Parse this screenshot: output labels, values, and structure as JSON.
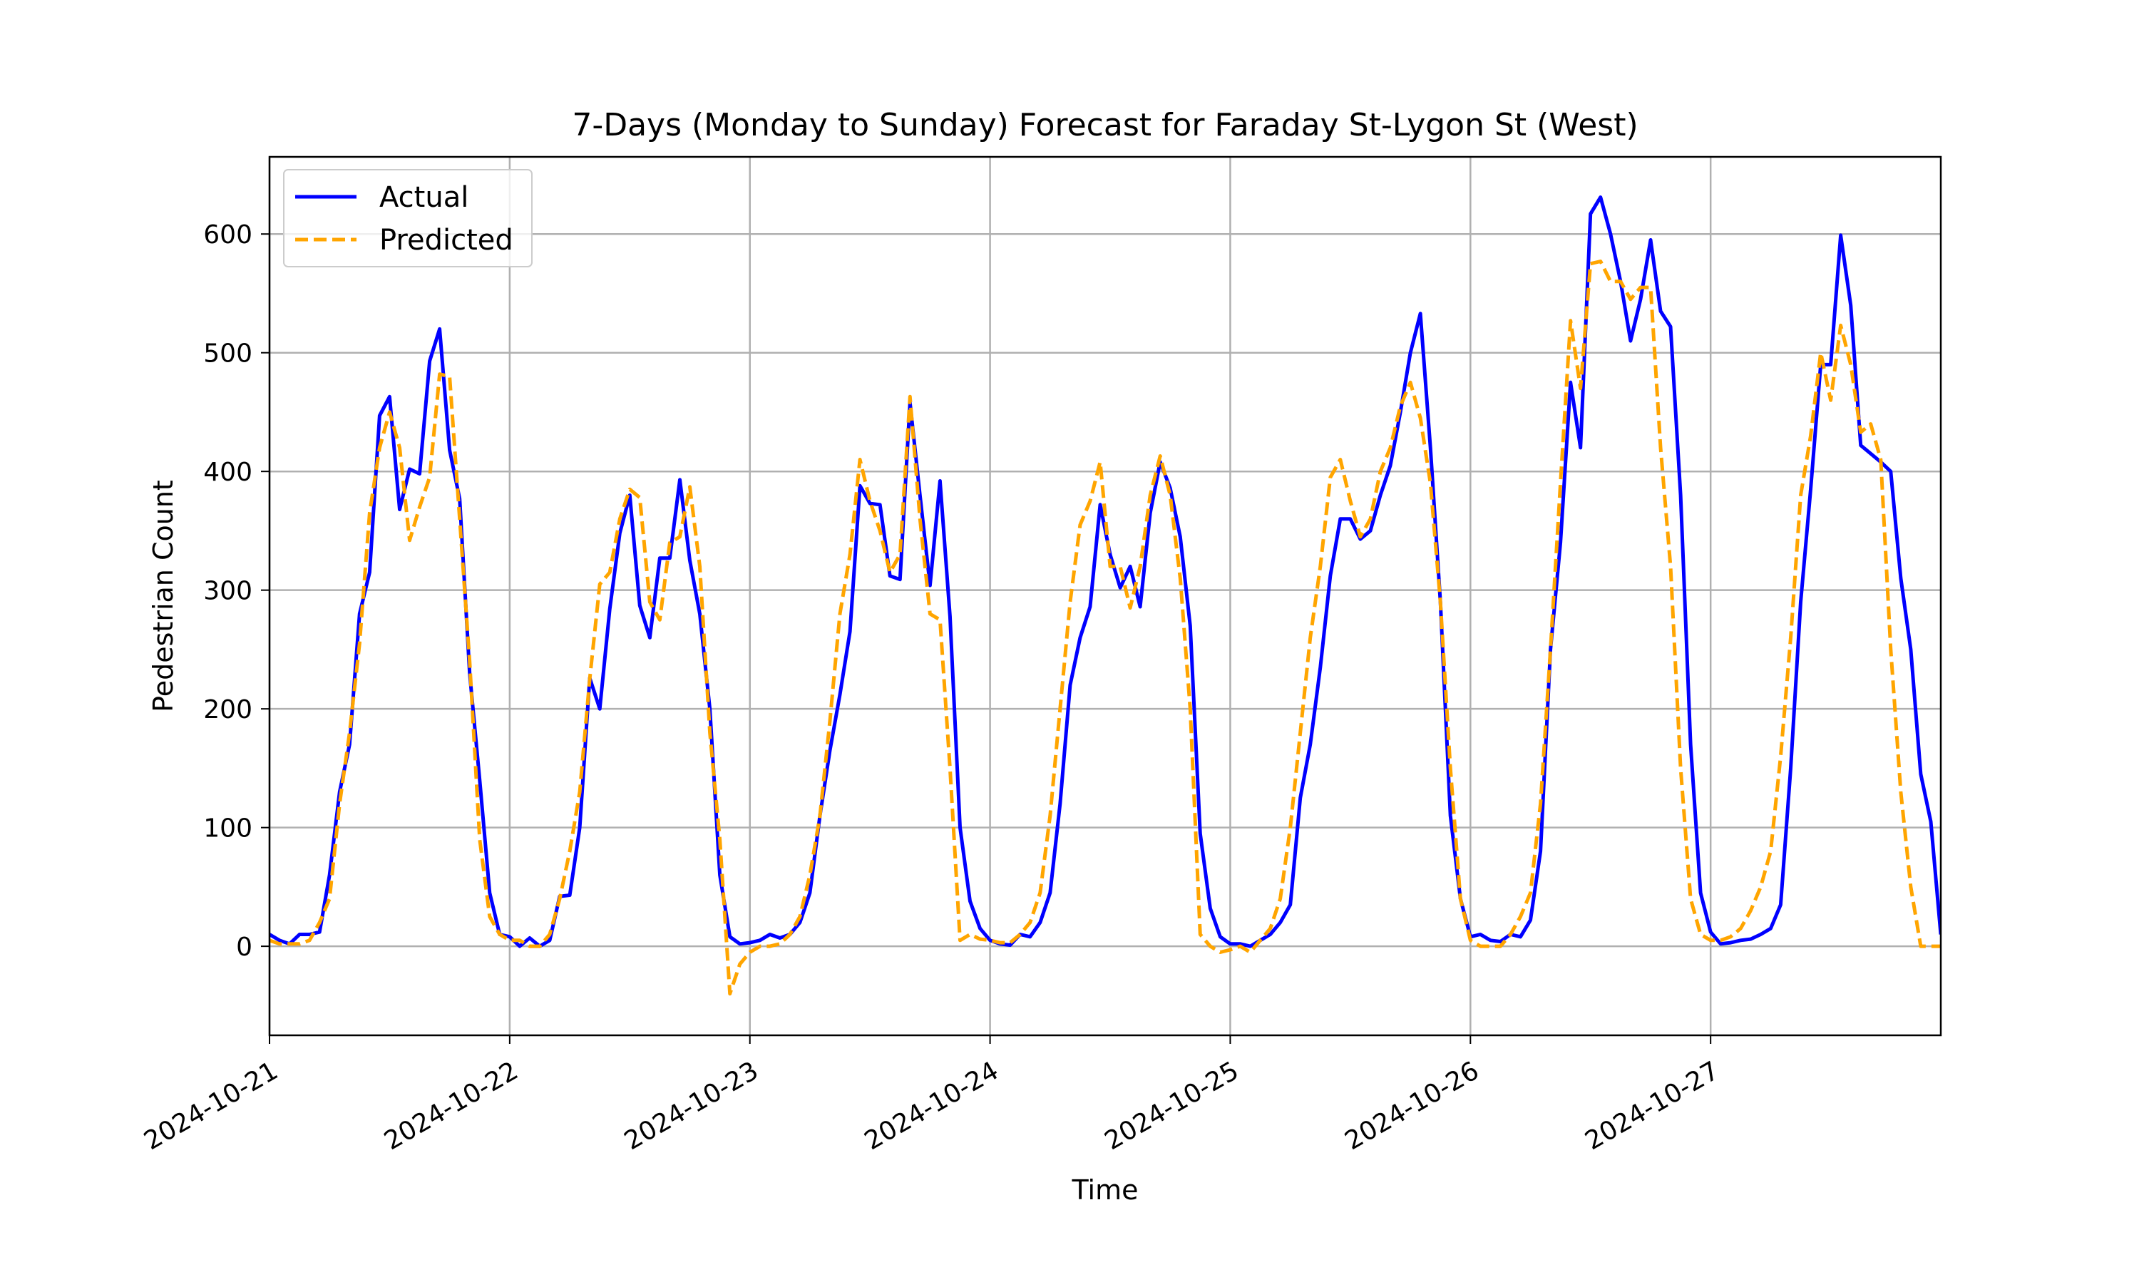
{
  "chart_data": {
    "type": "line",
    "title": "7-Days (Monday to Sunday) Forecast for Faraday St-Lygon St (West)",
    "xlabel": "Time",
    "ylabel": "Pedestrian Count",
    "x_ticks": [
      "2024-10-21",
      "2024-10-22",
      "2024-10-23",
      "2024-10-24",
      "2024-10-25",
      "2024-10-26",
      "2024-10-27"
    ],
    "y_ticks": [
      0,
      100,
      200,
      300,
      400,
      500,
      600
    ],
    "xlim": [
      "2024-10-21 00:00",
      "2024-10-27 23:00"
    ],
    "ylim": [
      -75,
      665
    ],
    "grid": true,
    "legend_position": "top-left",
    "start_time": "2024-10-21 00:00",
    "interval_hours": 1,
    "series": [
      {
        "name": "Actual",
        "color": "#0000ff",
        "style": "solid",
        "values": [
          10,
          5,
          2,
          10,
          10,
          12,
          60,
          130,
          170,
          280,
          315,
          447,
          463,
          368,
          402,
          398,
          493,
          520,
          418,
          377,
          230,
          140,
          45,
          10,
          8,
          0,
          7,
          0,
          5,
          42,
          43,
          100,
          226,
          200,
          284,
          348,
          380,
          287,
          260,
          327,
          327,
          393,
          325,
          280,
          200,
          60,
          8,
          2,
          3,
          5,
          10,
          7,
          10,
          20,
          45,
          110,
          165,
          212,
          265,
          388,
          373,
          372,
          312,
          309,
          458,
          380,
          304,
          392,
          278,
          100,
          38,
          15,
          5,
          2,
          1,
          10,
          8,
          20,
          45,
          120,
          220,
          260,
          286,
          372,
          330,
          302,
          320,
          286,
          365,
          408,
          386,
          345,
          270,
          95,
          32,
          8,
          2,
          2,
          0,
          5,
          10,
          20,
          35,
          125,
          170,
          235,
          312,
          360,
          360,
          343,
          350,
          380,
          405,
          450,
          500,
          533,
          420,
          290,
          110,
          40,
          8,
          10,
          5,
          4,
          10,
          8,
          22,
          80,
          250,
          340,
          475,
          420,
          617,
          631,
          600,
          560,
          510,
          545,
          595,
          535,
          522,
          380,
          170,
          45,
          12,
          2,
          3,
          5,
          6,
          10,
          15,
          35,
          150,
          290,
          385,
          490,
          490,
          599,
          540,
          422,
          415,
          408,
          400,
          310,
          250,
          145,
          105,
          10
        ]
      },
      {
        "name": "Predicted",
        "color": "#ffa500",
        "style": "dashed",
        "values": [
          5,
          2,
          2,
          2,
          5,
          20,
          40,
          120,
          180,
          255,
          365,
          420,
          450,
          420,
          342,
          370,
          395,
          482,
          480,
          360,
          240,
          90,
          25,
          10,
          5,
          5,
          0,
          0,
          10,
          40,
          80,
          130,
          225,
          305,
          315,
          360,
          385,
          378,
          290,
          275,
          340,
          345,
          387,
          320,
          180,
          90,
          -40,
          -15,
          -5,
          0,
          0,
          2,
          10,
          25,
          60,
          110,
          190,
          280,
          330,
          410,
          375,
          350,
          315,
          330,
          463,
          360,
          280,
          275,
          150,
          5,
          10,
          6,
          5,
          3,
          3,
          10,
          20,
          45,
          110,
          200,
          290,
          355,
          375,
          408,
          320,
          320,
          285,
          320,
          380,
          413,
          380,
          310,
          200,
          10,
          0,
          -5,
          -3,
          0,
          -5,
          5,
          15,
          40,
          100,
          180,
          260,
          320,
          395,
          410,
          375,
          345,
          360,
          400,
          420,
          455,
          475,
          445,
          390,
          290,
          150,
          40,
          5,
          0,
          0,
          0,
          10,
          25,
          45,
          120,
          250,
          390,
          527,
          470,
          575,
          577,
          560,
          560,
          545,
          555,
          555,
          420,
          320,
          150,
          40,
          10,
          5,
          5,
          8,
          15,
          30,
          50,
          80,
          160,
          260,
          380,
          430,
          500,
          460,
          523,
          490,
          433,
          440,
          410,
          250,
          130,
          50,
          0,
          0,
          0
        ]
      }
    ]
  }
}
